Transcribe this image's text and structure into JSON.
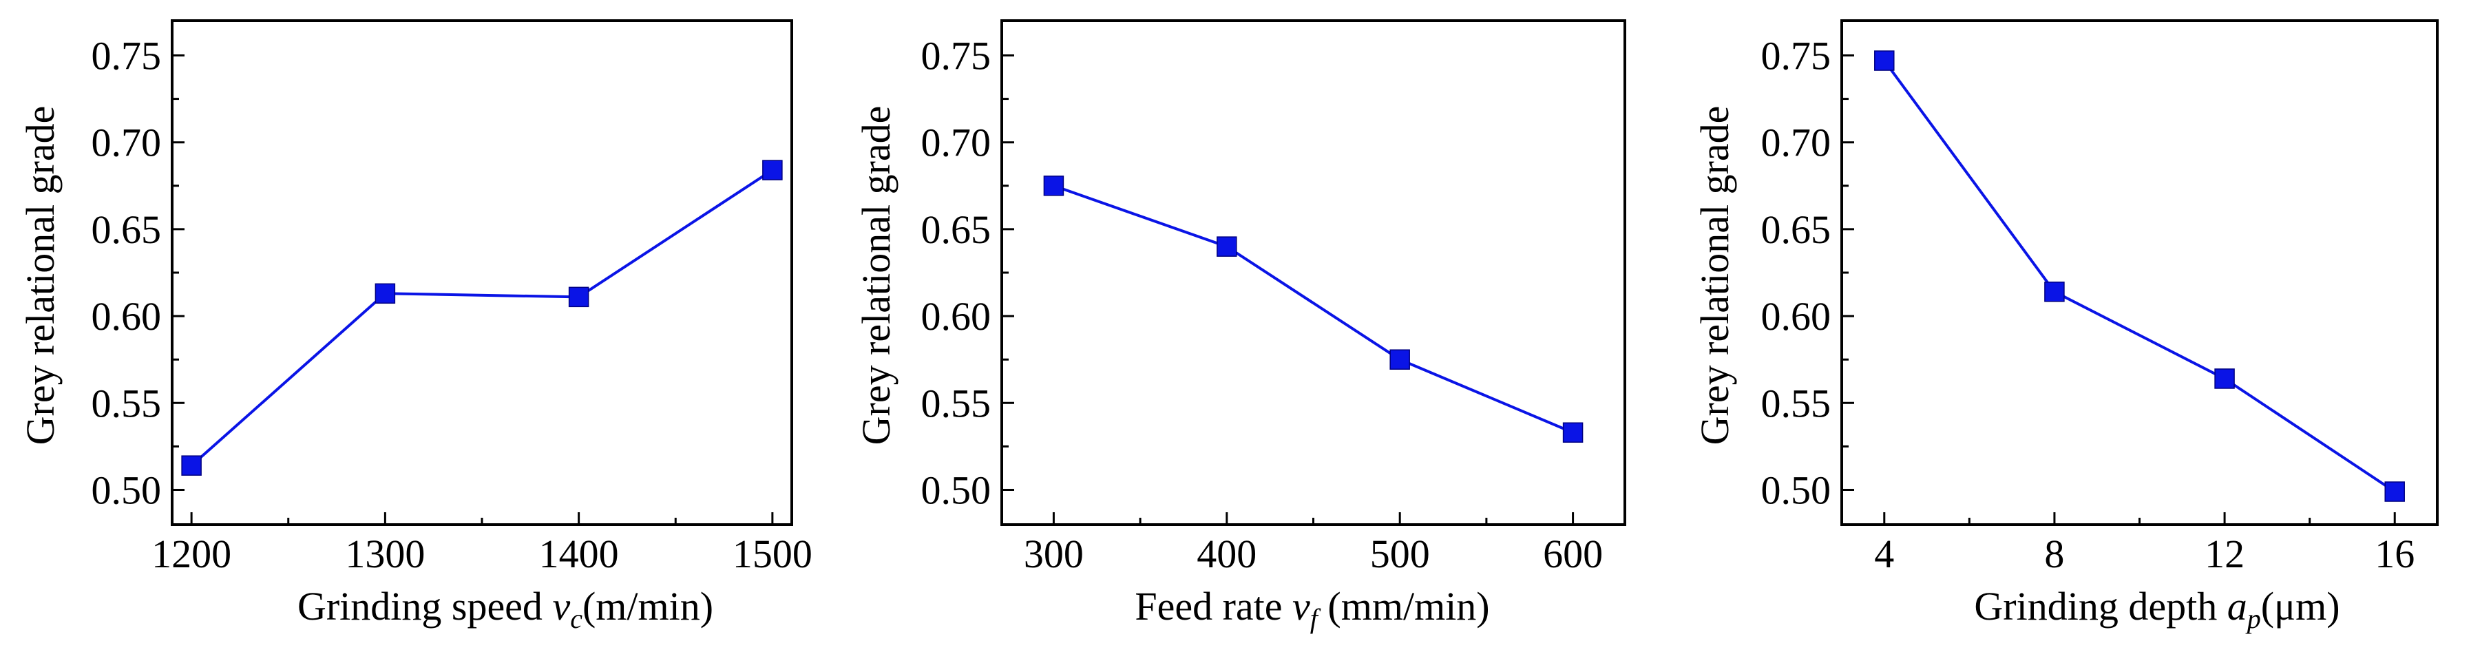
{
  "colors": {
    "series": "#0a14e6",
    "axes": "#000000",
    "background": "#ffffff"
  },
  "chart_data": [
    {
      "type": "line",
      "title": "",
      "ylabel": "Grey relational grade",
      "xlabel_parts": [
        "Grinding speed ",
        "v",
        "c",
        "(m/min)"
      ],
      "x": [
        1200,
        1300,
        1400,
        1500
      ],
      "xticks": [
        "1200",
        "1300",
        "1400",
        "1500"
      ],
      "xlim": [
        1190,
        1510
      ],
      "xminor": [
        1250,
        1350,
        1450
      ],
      "values": [
        0.514,
        0.613,
        0.611,
        0.684
      ],
      "yticks": [
        "0.50",
        "0.55",
        "0.60",
        "0.65",
        "0.70",
        "0.75"
      ],
      "ylim": [
        0.48,
        0.77
      ],
      "marker": "square",
      "grid": false
    },
    {
      "type": "line",
      "title": "",
      "ylabel": "Grey relational grade",
      "xlabel_parts": [
        "Feed rate ",
        "v",
        "f",
        " (mm/min)"
      ],
      "x": [
        300,
        400,
        500,
        600
      ],
      "xticks": [
        "300",
        "400",
        "500",
        "600"
      ],
      "xlim": [
        270,
        630
      ],
      "xminor": [
        350,
        450,
        550
      ],
      "values": [
        0.675,
        0.64,
        0.575,
        0.533
      ],
      "yticks": [
        "0.50",
        "0.55",
        "0.60",
        "0.65",
        "0.70",
        "0.75"
      ],
      "ylim": [
        0.48,
        0.77
      ],
      "marker": "square",
      "grid": false
    },
    {
      "type": "line",
      "title": "",
      "ylabel": "Grey relational grade",
      "xlabel_parts": [
        "Grinding depth ",
        "a",
        "p",
        "(μm)"
      ],
      "x": [
        4,
        8,
        12,
        16
      ],
      "xticks": [
        "4",
        "8",
        "12",
        "16"
      ],
      "xlim": [
        3,
        17
      ],
      "xminor": [
        6,
        10,
        14
      ],
      "values": [
        0.747,
        0.614,
        0.564,
        0.499
      ],
      "yticks": [
        "0.50",
        "0.55",
        "0.60",
        "0.65",
        "0.70",
        "0.75"
      ],
      "ylim": [
        0.48,
        0.77
      ],
      "marker": "square",
      "grid": false
    }
  ]
}
